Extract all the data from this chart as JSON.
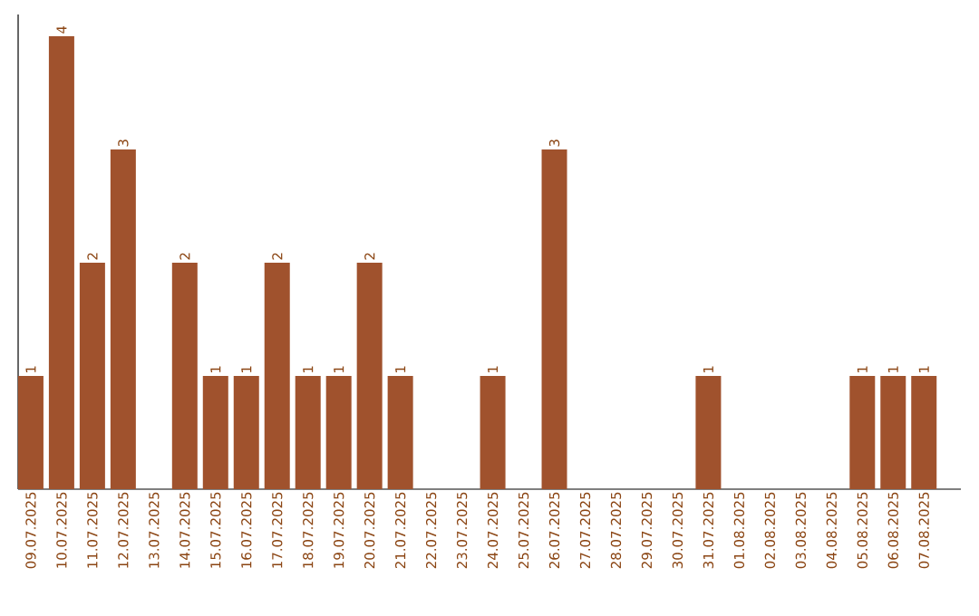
{
  "chart_data": {
    "type": "bar",
    "categories": [
      "09.07.2025",
      "10.07.2025",
      "11.07.2025",
      "12.07.2025",
      "13.07.2025",
      "14.07.2025",
      "15.07.2025",
      "16.07.2025",
      "17.07.2025",
      "18.07.2025",
      "19.07.2025",
      "20.07.2025",
      "21.07.2025",
      "22.07.2025",
      "23.07.2025",
      "24.07.2025",
      "25.07.2025",
      "26.07.2025",
      "27.07.2025",
      "28.07.2025",
      "29.07.2025",
      "30.07.2025",
      "31.07.2025",
      "01.08.2025",
      "02.08.2025",
      "03.08.2025",
      "04.08.2025",
      "05.08.2025",
      "06.08.2025",
      "07.08.2025"
    ],
    "values": [
      1,
      4,
      2,
      3,
      0,
      2,
      1,
      1,
      2,
      1,
      1,
      2,
      1,
      0,
      0,
      1,
      0,
      3,
      0,
      0,
      0,
      0,
      1,
      0,
      0,
      0,
      0,
      1,
      1,
      1
    ],
    "value_labels": [
      "1",
      "4",
      "2",
      "3",
      null,
      "2",
      "1",
      "1",
      "2",
      "1",
      "1",
      "2",
      "1",
      null,
      null,
      "1",
      null,
      "3",
      null,
      null,
      null,
      null,
      "1",
      null,
      null,
      null,
      null,
      "1",
      "1",
      "1"
    ],
    "color": "#a0522d"
  }
}
